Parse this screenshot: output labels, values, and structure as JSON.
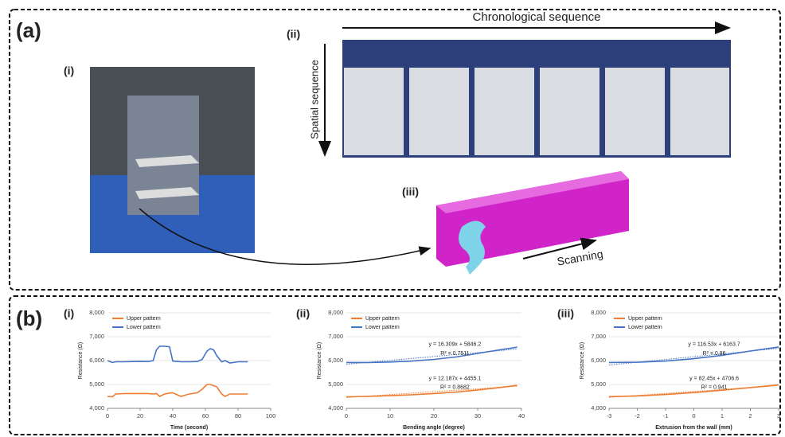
{
  "panel_a": {
    "label": "(a)",
    "photo_label": "(i)",
    "sequence_label": "(ii)",
    "model_label": "(iii)",
    "chronological": "Chronological sequence",
    "spatial": "Spatial sequence",
    "scanning": "Scanning"
  },
  "panel_b": {
    "label": "(b)"
  },
  "chart_data": [
    {
      "type": "line",
      "label": "(i)",
      "xlabel": "Time (second)",
      "ylabel": "Resistance (Ω)",
      "x": [
        0,
        3,
        5,
        10,
        15,
        20,
        25,
        28,
        30,
        32,
        35,
        38,
        40,
        45,
        50,
        55,
        58,
        61,
        63,
        65,
        67,
        70,
        72,
        75,
        80,
        86
      ],
      "series": [
        {
          "name": "Upper pattern",
          "color": "#ed7d31",
          "values": [
            4500,
            4480,
            4600,
            4620,
            4620,
            4620,
            4620,
            4600,
            4620,
            4500,
            4600,
            4640,
            4650,
            4500,
            4600,
            4650,
            4800,
            5000,
            5000,
            4950,
            4900,
            4600,
            4500,
            4600,
            4600,
            4600
          ]
        },
        {
          "name": "Lower pattern",
          "color": "#4472c4",
          "values": [
            6000,
            5920,
            5950,
            5950,
            5960,
            5970,
            5960,
            6000,
            6450,
            6600,
            6600,
            6580,
            5980,
            5950,
            5950,
            5960,
            6050,
            6400,
            6500,
            6450,
            6200,
            5950,
            6000,
            5900,
            5950,
            5950
          ]
        }
      ],
      "xlim": [
        0,
        100
      ],
      "xticks": [
        0,
        20,
        40,
        60,
        80,
        100
      ],
      "ylim": [
        4000,
        8000
      ],
      "yticks": [
        {
          "value": 4000,
          "label": "4,000"
        },
        {
          "value": 5000,
          "label": "5,000"
        },
        {
          "value": 6000,
          "label": "6,000"
        },
        {
          "value": 7000,
          "label": "7,000"
        },
        {
          "value": 8000,
          "label": "8,000"
        }
      ],
      "annotations": []
    },
    {
      "type": "line",
      "label": "(ii)",
      "xlabel": "Bending angle (degree)",
      "ylabel": "Resistance (Ω)",
      "x": [
        0,
        5,
        10,
        15,
        20,
        25,
        30,
        35,
        39
      ],
      "series": [
        {
          "name": "Upper pattern",
          "color": "#ed7d31",
          "values": [
            4480,
            4500,
            4530,
            4570,
            4620,
            4680,
            4770,
            4870,
            4960
          ]
        },
        {
          "name": "Lower pattern",
          "color": "#4472c4",
          "values": [
            5920,
            5920,
            5940,
            5980,
            6050,
            6150,
            6300,
            6450,
            6560
          ]
        },
        {
          "color": "#ed7d31",
          "dashed": true,
          "values": [
            4455,
            4516,
            4577,
            4638,
            4699,
            4760,
            4821,
            4882,
            4930
          ]
        },
        {
          "color": "#4472c4",
          "dashed": true,
          "values": [
            5846,
            5928,
            6009,
            6091,
            6172,
            6254,
            6335,
            6417,
            6482
          ]
        }
      ],
      "xlim": [
        0,
        40
      ],
      "xticks": [
        0,
        10,
        20,
        30,
        40
      ],
      "ylim": [
        4000,
        8000
      ],
      "yticks": [
        {
          "value": 4000,
          "label": "4,000"
        },
        {
          "value": 5000,
          "label": "5,000"
        },
        {
          "value": 6000,
          "label": "6,000"
        },
        {
          "value": 7000,
          "label": "7,000"
        },
        {
          "value": 8000,
          "label": "8,000"
        }
      ],
      "annotations": [
        "y = 16.309x + 5846.2",
        "R² = 0.7511",
        "y = 12.187x + 4455.1",
        "R² = 0.8682"
      ]
    },
    {
      "type": "line",
      "label": "(iii)",
      "xlabel": "Extrusion from the wall (mm)",
      "ylabel": "Resistance (Ω)",
      "x": [
        -3,
        -2,
        -1,
        0,
        1,
        2,
        3
      ],
      "series": [
        {
          "name": "Upper pattern",
          "color": "#ed7d31",
          "values": [
            4490,
            4520,
            4580,
            4660,
            4760,
            4870,
            4980
          ]
        },
        {
          "name": "Lower pattern",
          "color": "#4472c4",
          "values": [
            5920,
            5930,
            5980,
            6080,
            6220,
            6400,
            6570
          ]
        },
        {
          "color": "#ed7d31",
          "dashed": true,
          "values": [
            4459,
            4541,
            4624,
            4707,
            4789,
            4872,
            4954
          ]
        },
        {
          "color": "#4472c4",
          "dashed": true,
          "values": [
            5814,
            5930,
            6047,
            6164,
            6280,
            6397,
            6513
          ]
        }
      ],
      "xlim": [
        -3,
        3
      ],
      "xticks": [
        -3,
        -2,
        -1,
        0,
        1,
        2,
        3
      ],
      "ylim": [
        4000,
        8000
      ],
      "yticks": [
        {
          "value": 4000,
          "label": "4,000"
        },
        {
          "value": 5000,
          "label": "5,000"
        },
        {
          "value": 6000,
          "label": "6,000"
        },
        {
          "value": 7000,
          "label": "7,000"
        },
        {
          "value": 8000,
          "label": "8,000"
        }
      ],
      "annotations": [
        "y = 116.53x + 6163.7",
        "R² = 0.86",
        "y = 82.45x + 4706.6",
        "R² = 0.941"
      ]
    }
  ]
}
